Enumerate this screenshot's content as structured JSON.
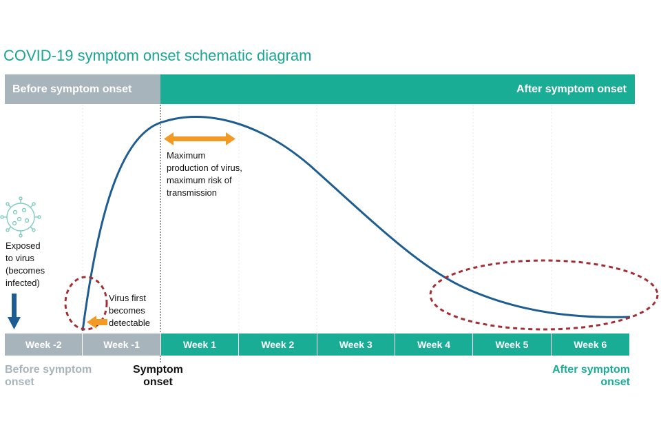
{
  "title": "COVID-19 symptom onset schematic diagram",
  "bands": {
    "before": "Before symptom onset",
    "after": "After symptom onset"
  },
  "weeks": [
    {
      "label": "Week -2",
      "phase": "pre"
    },
    {
      "label": "Week -1",
      "phase": "pre"
    },
    {
      "label": "Week 1",
      "phase": "post"
    },
    {
      "label": "Week 2",
      "phase": "post"
    },
    {
      "label": "Week 3",
      "phase": "post"
    },
    {
      "label": "Week 4",
      "phase": "post"
    },
    {
      "label": "Week 5",
      "phase": "post"
    },
    {
      "label": "Week 6",
      "phase": "post"
    }
  ],
  "annotations": {
    "exposed_lines": [
      "Exposed",
      "to virus",
      "(becomes",
      "infected)"
    ],
    "detectable_lines": [
      "Virus first",
      "becomes",
      "detectable"
    ],
    "maximum_lines": [
      "Maximum",
      "production of virus,",
      "maximum risk of",
      "transmission"
    ]
  },
  "bottom_labels": {
    "before_lines": [
      "Before symptom",
      "onset"
    ],
    "onset_lines": [
      "Symptom",
      "onset"
    ],
    "after_lines": [
      "After symptom",
      "onset"
    ]
  },
  "colors": {
    "teal": "#1aad96",
    "grey": "#a8b4bb",
    "curve": "#1d5d91",
    "arrow": "#f39a25",
    "ellipse": "#a32f35",
    "virus": "#7fcdc0"
  },
  "icons": {
    "virus": "virus-icon",
    "exposure_arrow": "down-arrow-icon"
  }
}
